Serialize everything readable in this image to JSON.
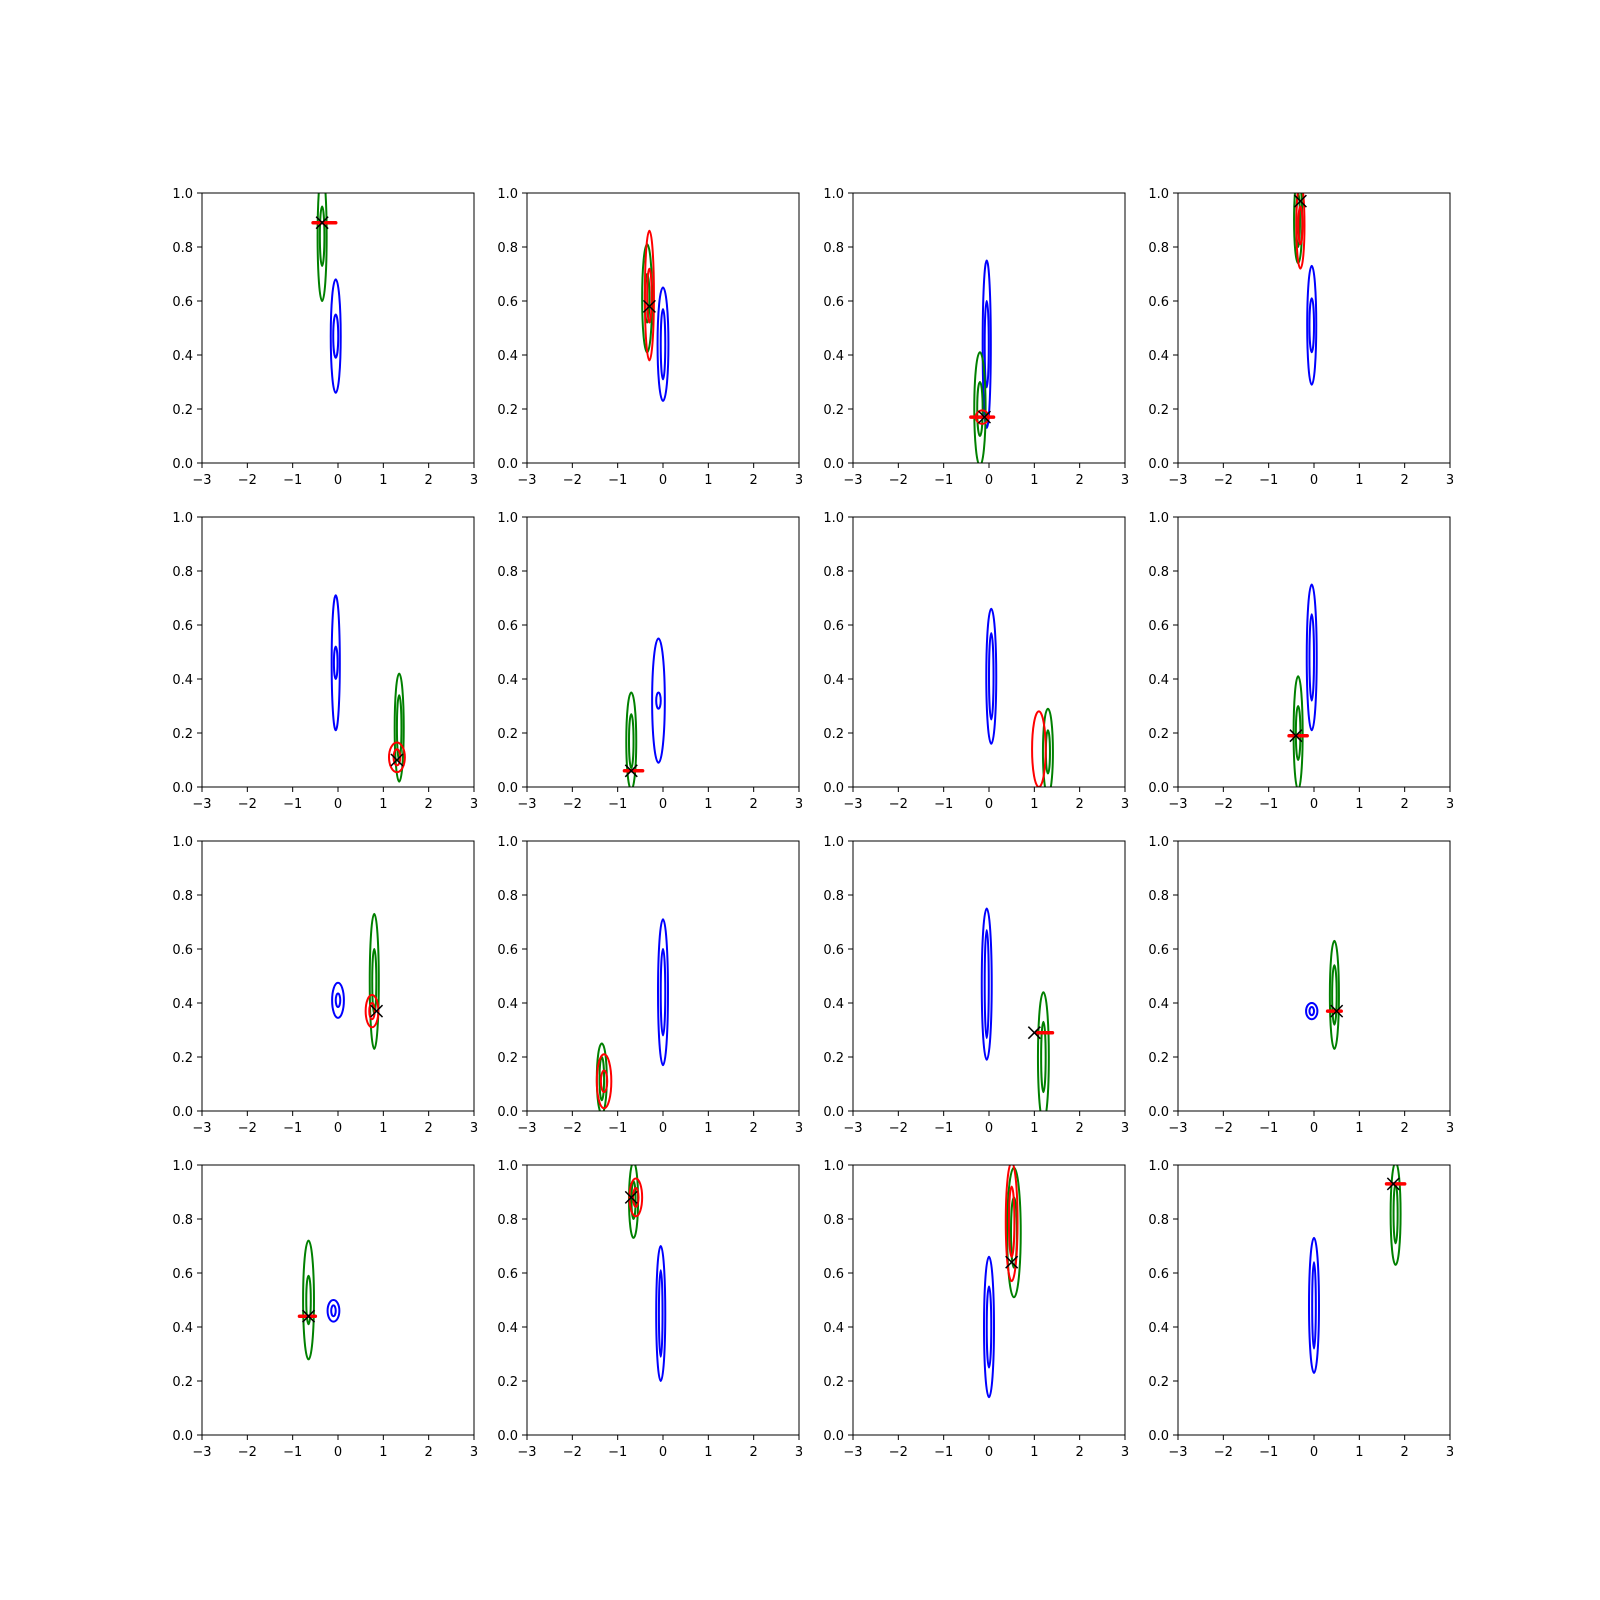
{
  "chart_data": {
    "type": "contour",
    "layout": {
      "rows": 4,
      "cols": 4
    },
    "xlim": [
      -3,
      3
    ],
    "ylim": [
      0,
      1
    ],
    "xticks": [
      -3,
      -2,
      -1,
      0,
      1,
      2,
      3
    ],
    "yticks": [
      0.0,
      0.2,
      0.4,
      0.6,
      0.8,
      1.0
    ],
    "x_tick_labels": [
      "−3",
      "−2",
      "−1",
      "0",
      "1",
      "2",
      "3"
    ],
    "y_tick_labels": [
      "0.0",
      "0.2",
      "0.4",
      "0.6",
      "0.8",
      "1.0"
    ],
    "colors": {
      "blue": "#0000ff",
      "green": "#008000",
      "red": "#ff0000",
      "marker": "#000000"
    },
    "panels": [
      {
        "contours": [
          {
            "color": "blue",
            "cx": -0.05,
            "cy": 0.47,
            "levels": [
              [
                0.22,
                0.21
              ],
              [
                0.11,
                0.08
              ]
            ]
          },
          {
            "color": "green",
            "cx": -0.35,
            "cy": 0.84,
            "levels": [
              [
                0.2,
                0.24
              ],
              [
                0.1,
                0.11
              ]
            ]
          }
        ],
        "markers": [
          {
            "x": -0.35,
            "y": 0.89,
            "bar": [
              -0.55,
              -0.05
            ]
          }
        ]
      },
      {
        "contours": [
          {
            "color": "blue",
            "cx": 0.0,
            "cy": 0.44,
            "levels": [
              [
                0.24,
                0.21
              ],
              [
                0.1,
                0.13
              ]
            ]
          },
          {
            "color": "green",
            "cx": -0.35,
            "cy": 0.61,
            "levels": [
              [
                0.22,
                0.2
              ],
              [
                0.1,
                0.09
              ]
            ]
          },
          {
            "color": "red",
            "cx": -0.3,
            "cy": 0.62,
            "levels": [
              [
                0.2,
                0.24
              ],
              [
                0.1,
                0.1
              ]
            ]
          }
        ],
        "markers": [
          {
            "x": -0.3,
            "y": 0.58,
            "bar": null
          }
        ]
      },
      {
        "contours": [
          {
            "color": "blue",
            "cx": -0.05,
            "cy": 0.44,
            "levels": [
              [
                0.18,
                0.31
              ],
              [
                0.09,
                0.16
              ]
            ]
          },
          {
            "color": "green",
            "cx": -0.2,
            "cy": 0.2,
            "levels": [
              [
                0.25,
                0.21
              ],
              [
                0.12,
                0.1
              ]
            ]
          },
          {
            "color": "red",
            "cx": -0.15,
            "cy": 0.17,
            "levels": [
              [
                0.28,
                0.025
              ]
            ]
          }
        ],
        "markers": [
          {
            "x": -0.1,
            "y": 0.17,
            "bar": [
              -0.4,
              0.1
            ]
          }
        ]
      },
      {
        "contours": [
          {
            "color": "blue",
            "cx": -0.05,
            "cy": 0.51,
            "levels": [
              [
                0.2,
                0.22
              ],
              [
                0.1,
                0.1
              ]
            ]
          },
          {
            "color": "green",
            "cx": -0.35,
            "cy": 0.9,
            "levels": [
              [
                0.18,
                0.16
              ],
              [
                0.08,
                0.1
              ]
            ]
          },
          {
            "color": "red",
            "cx": -0.3,
            "cy": 0.88,
            "levels": [
              [
                0.18,
                0.16
              ],
              [
                0.09,
                0.07
              ]
            ]
          }
        ],
        "markers": [
          {
            "x": -0.3,
            "y": 0.97,
            "bar": null
          }
        ]
      },
      {
        "contours": [
          {
            "color": "blue",
            "cx": -0.05,
            "cy": 0.46,
            "levels": [
              [
                0.18,
                0.25
              ],
              [
                0.08,
                0.06
              ]
            ]
          },
          {
            "color": "green",
            "cx": 1.35,
            "cy": 0.22,
            "levels": [
              [
                0.2,
                0.2
              ],
              [
                0.1,
                0.12
              ]
            ]
          },
          {
            "color": "red",
            "cx": 1.3,
            "cy": 0.11,
            "levels": [
              [
                0.35,
                0.055
              ],
              [
                0.15,
                0.03
              ]
            ]
          }
        ],
        "markers": [
          {
            "x": 1.3,
            "y": 0.1,
            "bar": null
          }
        ]
      },
      {
        "contours": [
          {
            "color": "blue",
            "cx": -0.1,
            "cy": 0.32,
            "levels": [
              [
                0.28,
                0.23
              ],
              [
                0.1,
                0.03
              ]
            ]
          },
          {
            "color": "green",
            "cx": -0.7,
            "cy": 0.17,
            "levels": [
              [
                0.22,
                0.18
              ],
              [
                0.1,
                0.1
              ]
            ]
          }
        ],
        "markers": [
          {
            "x": -0.7,
            "y": 0.06,
            "bar": [
              -0.85,
              -0.45
            ]
          }
        ]
      },
      {
        "contours": [
          {
            "color": "blue",
            "cx": 0.05,
            "cy": 0.41,
            "levels": [
              [
                0.22,
                0.25
              ],
              [
                0.1,
                0.16
              ]
            ]
          },
          {
            "color": "green",
            "cx": 1.3,
            "cy": 0.13,
            "levels": [
              [
                0.22,
                0.16
              ],
              [
                0.09,
                0.08
              ]
            ]
          },
          {
            "color": "red",
            "cx": 1.1,
            "cy": 0.14,
            "levels": [
              [
                0.3,
                0.14
              ]
            ]
          }
        ],
        "markers": []
      },
      {
        "contours": [
          {
            "color": "blue",
            "cx": -0.05,
            "cy": 0.48,
            "levels": [
              [
                0.22,
                0.27
              ],
              [
                0.1,
                0.16
              ]
            ]
          },
          {
            "color": "green",
            "cx": -0.35,
            "cy": 0.2,
            "levels": [
              [
                0.2,
                0.21
              ],
              [
                0.1,
                0.1
              ]
            ]
          }
        ],
        "markers": [
          {
            "x": -0.4,
            "y": 0.19,
            "bar": [
              -0.55,
              -0.15
            ]
          }
        ]
      },
      {
        "contours": [
          {
            "color": "blue",
            "cx": 0.0,
            "cy": 0.41,
            "levels": [
              [
                0.26,
                0.065
              ],
              [
                0.1,
                0.025
              ]
            ]
          },
          {
            "color": "green",
            "cx": 0.8,
            "cy": 0.48,
            "levels": [
              [
                0.2,
                0.25
              ],
              [
                0.09,
                0.12
              ]
            ]
          },
          {
            "color": "red",
            "cx": 0.75,
            "cy": 0.37,
            "levels": [
              [
                0.28,
                0.06
              ],
              [
                0.12,
                0.03
              ]
            ]
          }
        ],
        "markers": [
          {
            "x": 0.85,
            "y": 0.37,
            "bar": null
          }
        ]
      },
      {
        "contours": [
          {
            "color": "blue",
            "cx": 0.0,
            "cy": 0.44,
            "levels": [
              [
                0.22,
                0.27
              ],
              [
                0.1,
                0.16
              ]
            ]
          },
          {
            "color": "green",
            "cx": -1.35,
            "cy": 0.12,
            "levels": [
              [
                0.22,
                0.13
              ],
              [
                0.1,
                0.08
              ]
            ]
          },
          {
            "color": "red",
            "cx": -1.3,
            "cy": 0.11,
            "levels": [
              [
                0.32,
                0.1
              ],
              [
                0.14,
                0.04
              ]
            ]
          }
        ],
        "markers": []
      },
      {
        "contours": [
          {
            "color": "blue",
            "cx": -0.05,
            "cy": 0.47,
            "levels": [
              [
                0.22,
                0.28
              ],
              [
                0.09,
                0.2
              ]
            ]
          },
          {
            "color": "green",
            "cx": 1.2,
            "cy": 0.2,
            "levels": [
              [
                0.24,
                0.24
              ],
              [
                0.1,
                0.13
              ]
            ]
          }
        ],
        "markers": [
          {
            "x": 1.0,
            "y": 0.29,
            "bar": [
              1.05,
              1.4
            ]
          }
        ]
      },
      {
        "contours": [
          {
            "color": "blue",
            "cx": -0.05,
            "cy": 0.37,
            "levels": [
              [
                0.25,
                0.03
              ],
              [
                0.1,
                0.015
              ]
            ]
          },
          {
            "color": "green",
            "cx": 0.45,
            "cy": 0.43,
            "levels": [
              [
                0.2,
                0.2
              ],
              [
                0.1,
                0.11
              ]
            ]
          }
        ],
        "markers": [
          {
            "x": 0.5,
            "y": 0.37,
            "bar": [
              0.3,
              0.6
            ]
          }
        ]
      },
      {
        "contours": [
          {
            "color": "blue",
            "cx": -0.1,
            "cy": 0.46,
            "levels": [
              [
                0.26,
                0.04
              ],
              [
                0.1,
                0.02
              ]
            ]
          },
          {
            "color": "green",
            "cx": -0.65,
            "cy": 0.5,
            "levels": [
              [
                0.24,
                0.22
              ],
              [
                0.1,
                0.09
              ]
            ]
          }
        ],
        "markers": [
          {
            "x": -0.65,
            "y": 0.44,
            "bar": [
              -0.85,
              -0.5
            ]
          }
        ]
      },
      {
        "contours": [
          {
            "color": "blue",
            "cx": -0.05,
            "cy": 0.45,
            "levels": [
              [
                0.2,
                0.25
              ],
              [
                0.08,
                0.16
              ]
            ]
          },
          {
            "color": "green",
            "cx": -0.65,
            "cy": 0.87,
            "levels": [
              [
                0.2,
                0.14
              ],
              [
                0.09,
                0.07
              ]
            ]
          },
          {
            "color": "red",
            "cx": -0.6,
            "cy": 0.88,
            "levels": [
              [
                0.28,
                0.07
              ],
              [
                0.12,
                0.035
              ]
            ]
          }
        ],
        "markers": [
          {
            "x": -0.7,
            "y": 0.88,
            "bar": null
          }
        ]
      },
      {
        "contours": [
          {
            "color": "blue",
            "cx": 0.0,
            "cy": 0.4,
            "levels": [
              [
                0.22,
                0.26
              ],
              [
                0.1,
                0.15
              ]
            ]
          },
          {
            "color": "green",
            "cx": 0.55,
            "cy": 0.75,
            "levels": [
              [
                0.3,
                0.24
              ],
              [
                0.13,
                0.13
              ]
            ]
          },
          {
            "color": "red",
            "cx": 0.5,
            "cy": 0.79,
            "levels": [
              [
                0.26,
                0.22
              ],
              [
                0.12,
                0.13
              ]
            ]
          }
        ],
        "markers": [
          {
            "x": 0.5,
            "y": 0.64,
            "bar": null
          }
        ]
      },
      {
        "contours": [
          {
            "color": "blue",
            "cx": 0.0,
            "cy": 0.48,
            "levels": [
              [
                0.22,
                0.25
              ],
              [
                0.08,
                0.16
              ]
            ]
          },
          {
            "color": "green",
            "cx": 1.8,
            "cy": 0.82,
            "levels": [
              [
                0.22,
                0.19
              ],
              [
                0.09,
                0.11
              ]
            ]
          }
        ],
        "markers": [
          {
            "x": 1.75,
            "y": 0.93,
            "bar": [
              1.6,
              2.0
            ]
          }
        ]
      }
    ]
  }
}
